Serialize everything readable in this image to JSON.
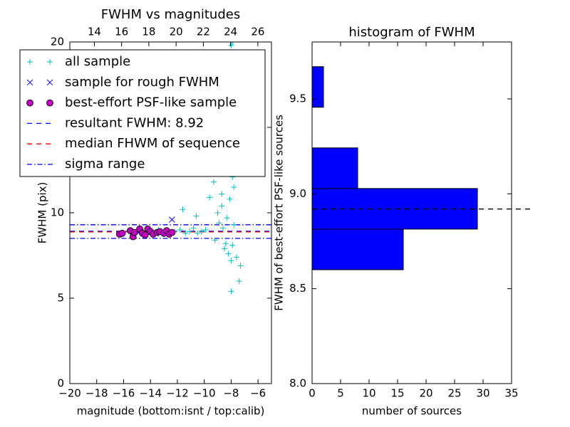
{
  "chart_data": [
    {
      "type": "scatter",
      "title": "FWHM vs magnitudes",
      "xlabel": "magnitude (bottom:isnt / top:calib)",
      "ylabel": "FWHM (pix)",
      "xlim": [
        -20,
        -5
      ],
      "xticks": [
        {
          "value": -20,
          "label": "−20"
        },
        {
          "value": -18,
          "label": "−18"
        },
        {
          "value": -16,
          "label": "−16"
        },
        {
          "value": -14,
          "label": "−14"
        },
        {
          "value": -12,
          "label": "−12"
        },
        {
          "value": -10,
          "label": "−10"
        },
        {
          "value": -8,
          "label": "−8"
        },
        {
          "value": -6,
          "label": "−6"
        }
      ],
      "x2lim": [
        12.2,
        27.0
      ],
      "x2ticks": [
        14,
        16,
        18,
        20,
        22,
        24,
        26
      ],
      "ylim": [
        0,
        20
      ],
      "yticks": [
        0,
        5,
        10,
        15,
        20
      ],
      "legend": "upper left",
      "series": [
        {
          "name": "all sample",
          "marker": "+",
          "color": "#00bfbf",
          "x": [
            -16.2,
            -15.6,
            -15.1,
            -14.7,
            -14.3,
            -13.9,
            -13.4,
            -13.0,
            -12.6,
            -12.2,
            -11.8,
            -11.4,
            -11.1,
            -10.8,
            -10.5,
            -10.2,
            -9.9,
            -11.6,
            -10.6,
            -9.6,
            -9.3,
            -9.0,
            -8.8,
            -8.6,
            -8.5,
            -8.4,
            -8.3,
            -8.2,
            -8.1,
            -8.0,
            -7.9,
            -7.8,
            -8.7,
            -8.9,
            -9.2,
            -8.3,
            -8.1,
            -7.9,
            -8.5,
            -8.2,
            -8.0,
            -7.6,
            -7.4,
            -7.3,
            -8.4,
            -8.6,
            -8.0,
            -7.9,
            -8.1,
            -8.3,
            -9.0,
            -8.7,
            -8.2,
            -7.8
          ],
          "values": [
            8.7,
            8.9,
            8.8,
            9.0,
            8.9,
            8.8,
            9.0,
            8.9,
            8.8,
            8.9,
            9.0,
            8.8,
            8.9,
            9.1,
            8.8,
            8.9,
            9.0,
            10.2,
            9.8,
            10.9,
            11.8,
            12.5,
            13.2,
            13.8,
            14.6,
            15.4,
            16.3,
            17.2,
            18.4,
            19.8,
            12.1,
            11.5,
            10.4,
            9.4,
            8.4,
            9.7,
            10.8,
            8.1,
            7.9,
            7.6,
            7.2,
            7.4,
            6.0,
            6.9,
            8.2,
            9.1,
            5.4,
            20.0,
            14.2,
            12.9,
            10.0,
            11.1,
            13.5,
            9.3
          ]
        },
        {
          "name": "sample for rough FWHM",
          "marker": "x",
          "color": "#0000ff",
          "x": [
            -12.4,
            -14.8,
            -13.6
          ],
          "values": [
            9.6,
            8.9,
            8.8
          ]
        },
        {
          "name": "best-effort PSF-like sample",
          "marker": "o",
          "color": "#bf00bf",
          "x": [
            -16.3,
            -16.1,
            -15.5,
            -15.3,
            -15.2,
            -14.8,
            -14.6,
            -14.4,
            -14.2,
            -14.0,
            -13.8,
            -13.5,
            -13.3,
            -13.0,
            -12.8,
            -12.6,
            -12.4
          ],
          "values": [
            8.75,
            8.8,
            8.95,
            8.6,
            8.85,
            9.05,
            8.8,
            8.7,
            9.05,
            8.9,
            8.75,
            8.85,
            8.9,
            8.8,
            8.95,
            8.75,
            8.85
          ]
        }
      ],
      "hlines": [
        {
          "name": "resultant FWHM: 8.92",
          "color": "#0000ff",
          "style": "dashed",
          "values": [
            8.92
          ]
        },
        {
          "name": "median FHWM of sequence",
          "color": "#ff0000",
          "style": "dashed",
          "values": [
            8.88
          ]
        },
        {
          "name": "sigma range",
          "color": "#0000ff",
          "style": "dashdot",
          "values": [
            9.3,
            8.5
          ]
        }
      ]
    },
    {
      "type": "histogram",
      "orientation": "horizontal",
      "title": "histogram of FWHM",
      "xlabel": "number of sources",
      "ylabel": "FWHM of best-effort PSF-like sources",
      "bins": [
        8.6,
        8.814,
        9.028,
        9.242,
        9.456,
        9.67
      ],
      "counts": [
        16,
        29,
        8,
        0,
        2
      ],
      "color": "#0000ff",
      "reference_line": 8.92,
      "xlim": [
        0,
        35
      ],
      "xticks": [
        0,
        5,
        10,
        15,
        20,
        25,
        30,
        35
      ],
      "ylim": [
        8.0,
        9.8
      ],
      "yticks": [
        {
          "value": 8.0,
          "label": "8.0"
        },
        {
          "value": 8.5,
          "label": "8.5"
        },
        {
          "value": 9.0,
          "label": "9.0"
        },
        {
          "value": 9.5,
          "label": "9.5"
        }
      ]
    }
  ]
}
